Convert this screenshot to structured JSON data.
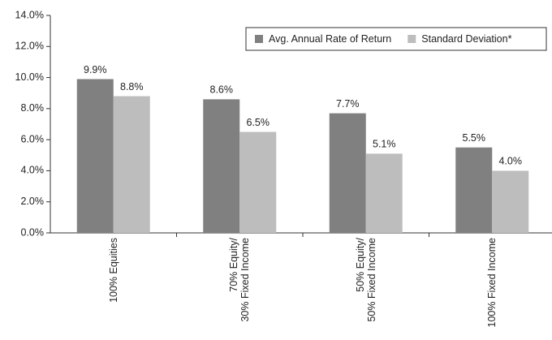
{
  "chart_data": {
    "type": "bar",
    "categories": [
      "100% Equities",
      "70% Equity/\n30% Fixed Income",
      "50% Equity/\n50% Fixed Income",
      "100% Fixed Income"
    ],
    "series": [
      {
        "name": "Avg. Annual Rate of Return",
        "color": "#808080",
        "values": [
          9.9,
          8.6,
          7.7,
          5.5
        ],
        "value_labels": [
          "9.9%",
          "8.6%",
          "7.7%",
          "5.5%"
        ]
      },
      {
        "name": "Standard Deviation*",
        "color": "#bdbdbd",
        "values": [
          8.8,
          6.5,
          5.1,
          4.0
        ],
        "value_labels": [
          "8.8%",
          "6.5%",
          "5.1%",
          "4.0%"
        ]
      }
    ],
    "ylim": [
      0,
      14
    ],
    "yticks": [
      {
        "value": 0,
        "label": "0.0%"
      },
      {
        "value": 2,
        "label": "2.0%"
      },
      {
        "value": 4,
        "label": "4.0%"
      },
      {
        "value": 6,
        "label": "6.0%"
      },
      {
        "value": 8,
        "label": "8.0%"
      },
      {
        "value": 10,
        "label": "10.0%"
      },
      {
        "value": 12,
        "label": "12.0%"
      },
      {
        "value": 14,
        "label": "14.0%"
      }
    ],
    "legend": "upper right"
  }
}
